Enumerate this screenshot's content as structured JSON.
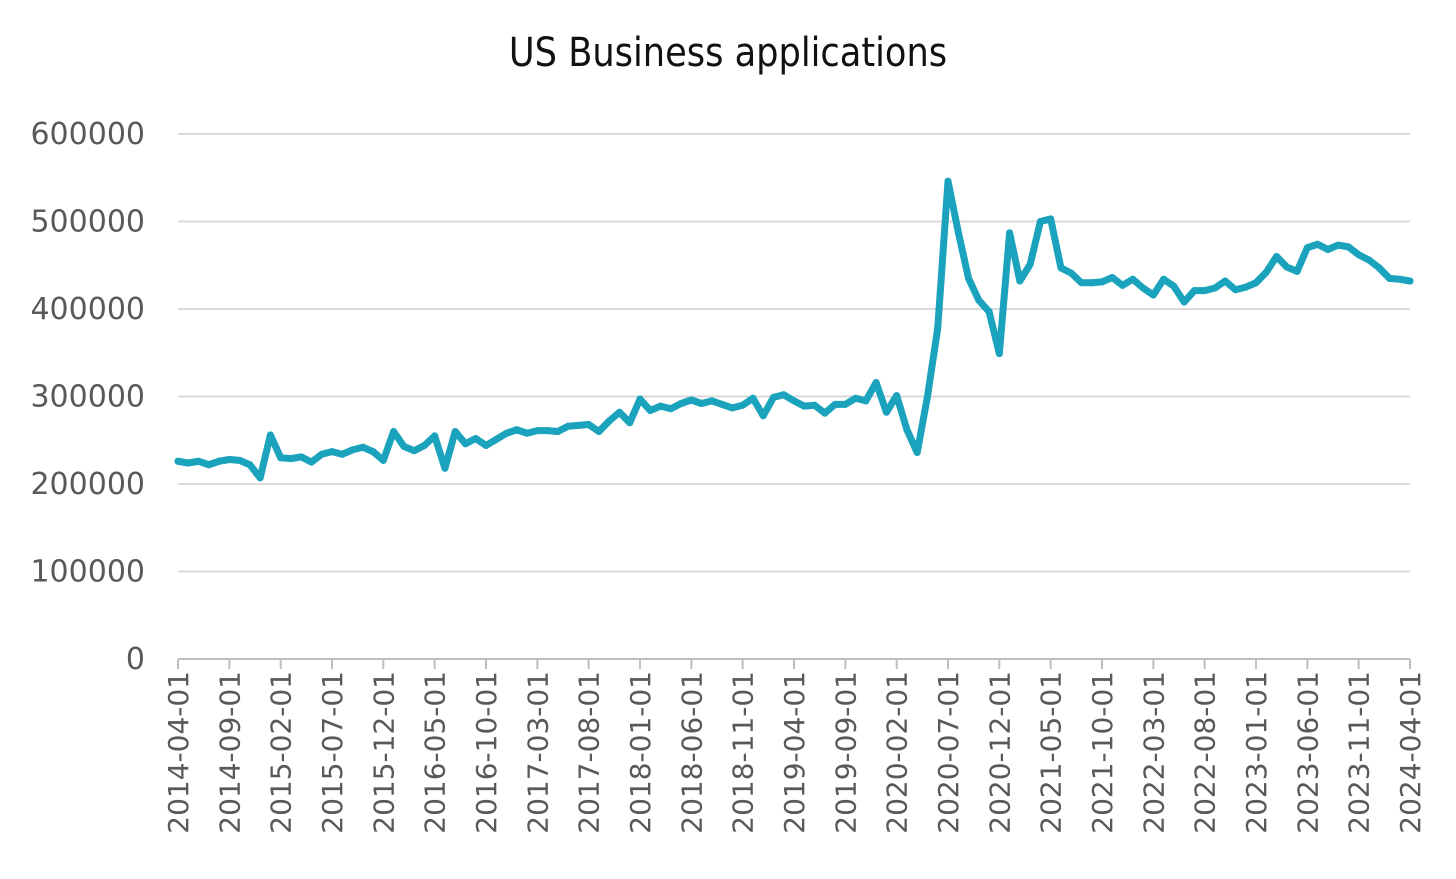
{
  "colors": {
    "line": "#1BA3BD",
    "grid": "#D9D9D9",
    "axis": "#BFBFBF",
    "tick_text": "#595959",
    "title": "#111111"
  },
  "chart_data": {
    "type": "line",
    "title": "US Business applications",
    "xlabel": "",
    "ylabel": "",
    "ylim": [
      0,
      600000
    ],
    "y_ticks": [
      "0",
      "100000",
      "200000",
      "300000",
      "400000",
      "500000",
      "600000"
    ],
    "y_tick_values": [
      0,
      100000,
      200000,
      300000,
      400000,
      500000,
      600000
    ],
    "x_tick_labels": [
      "2014-04-01",
      "2014-09-01",
      "2015-02-01",
      "2015-07-01",
      "2015-12-01",
      "2016-05-01",
      "2016-10-01",
      "2017-03-01",
      "2017-08-01",
      "2018-01-01",
      "2018-06-01",
      "2018-11-01",
      "2019-04-01",
      "2019-09-01",
      "2020-02-01",
      "2020-07-01",
      "2020-12-01",
      "2021-05-01",
      "2021-10-01",
      "2022-03-01",
      "2022-08-01",
      "2023-01-01",
      "2023-06-01",
      "2023-11-01",
      "2024-04-01"
    ],
    "grid": "horizontal",
    "legend": "none",
    "series": [
      {
        "x_start": "2014-04",
        "x_end": "2024-04",
        "frequency": "monthly",
        "values": [
          226000,
          224000,
          226000,
          222000,
          226000,
          228000,
          227000,
          222000,
          207000,
          256000,
          230000,
          229000,
          231000,
          225000,
          234000,
          237000,
          234000,
          239000,
          242000,
          237000,
          227000,
          260000,
          243000,
          238000,
          244000,
          255000,
          218000,
          260000,
          246000,
          252000,
          244000,
          251000,
          258000,
          262000,
          258000,
          261000,
          261000,
          260000,
          266000,
          267000,
          268000,
          260000,
          272000,
          282000,
          270000,
          297000,
          284000,
          289000,
          286000,
          292000,
          296000,
          292000,
          295000,
          291000,
          287000,
          290000,
          298000,
          278000,
          299000,
          302000,
          295000,
          289000,
          290000,
          281000,
          291000,
          291000,
          298000,
          295000,
          316000,
          282000,
          301000,
          262000,
          236000,
          300000,
          378000,
          546000,
          488000,
          435000,
          410000,
          397000,
          349000,
          487000,
          432000,
          451000,
          500000,
          503000,
          447000,
          441000,
          430000,
          430000,
          431000,
          436000,
          427000,
          434000,
          424000,
          416000,
          434000,
          426000,
          408000,
          421000,
          421000,
          424000,
          432000,
          422000,
          425000,
          430000,
          442000,
          460000,
          448000,
          443000,
          470000,
          474000,
          468000,
          473000,
          471000,
          462000,
          456000,
          447000,
          435000,
          434000,
          432000
        ]
      }
    ]
  }
}
